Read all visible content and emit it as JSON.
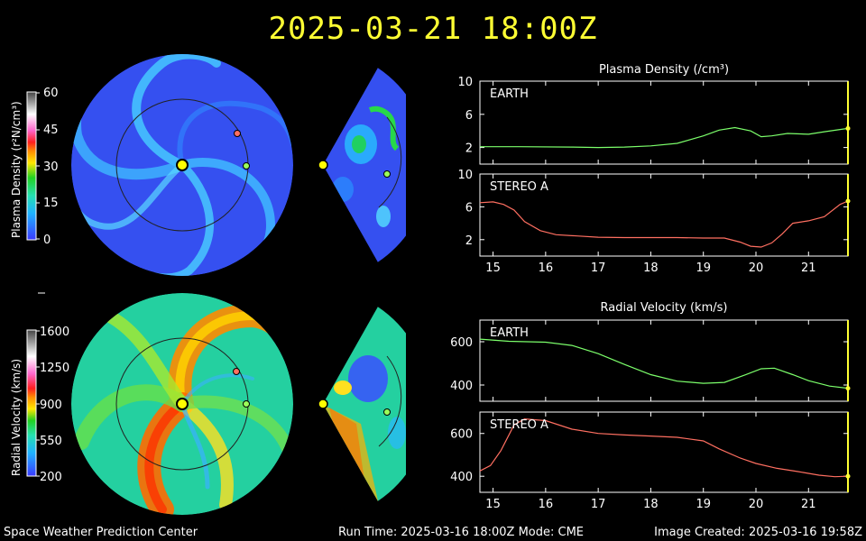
{
  "title": "2025-03-21 18:00Z",
  "footer": {
    "left": "Space Weather Prediction Center",
    "center": "Run Time: 2025-03-16 18:00Z  Mode: CME",
    "right": "Image Created: 2025-03-16 19:58Z"
  },
  "density_scale": {
    "label": "Plasma Density (r²N/cm³)",
    "ticks": [
      "60",
      "45",
      "30",
      "15",
      "0"
    ]
  },
  "velocity_scale": {
    "label": "Radial Velocity (km/s)",
    "ticks": [
      "1600",
      "1250",
      "900",
      "550",
      "200"
    ]
  },
  "density_panel": {
    "title": "Plasma Density (/cm³)"
  },
  "velocity_panel": {
    "title": "Radial Velocity (km/s)"
  },
  "chart_data": [
    {
      "type": "line",
      "title": "Plasma Density (/cm³)",
      "series": [
        {
          "name": "EARTH",
          "color": "#7cff6b",
          "x": [
            14.75,
            15.5,
            16.5,
            17.0,
            17.5,
            18.0,
            18.5,
            19.0,
            19.3,
            19.6,
            19.9,
            20.1,
            20.3,
            20.6,
            21.0,
            21.3,
            21.75
          ],
          "y": [
            2.1,
            2.1,
            2.05,
            2.0,
            2.05,
            2.2,
            2.5,
            3.4,
            4.1,
            4.4,
            4.0,
            3.3,
            3.4,
            3.7,
            3.6,
            3.9,
            4.3
          ]
        }
      ],
      "ylim": [
        0,
        10
      ],
      "yticks": [
        2,
        6,
        10
      ],
      "xlim": [
        14.75,
        21.75
      ],
      "xticks": [
        15,
        16,
        17,
        18,
        19,
        20,
        21
      ]
    },
    {
      "type": "line",
      "series": [
        {
          "name": "STEREO A",
          "color": "#ff6f61",
          "x": [
            14.75,
            15.0,
            15.2,
            15.4,
            15.6,
            15.9,
            16.2,
            16.6,
            17.0,
            17.5,
            18.0,
            18.5,
            19.0,
            19.4,
            19.7,
            19.9,
            20.1,
            20.3,
            20.5,
            20.7,
            21.0,
            21.3,
            21.6,
            21.75
          ],
          "y": [
            6.5,
            6.6,
            6.3,
            5.6,
            4.2,
            3.1,
            2.6,
            2.45,
            2.3,
            2.25,
            2.25,
            2.25,
            2.2,
            2.2,
            1.7,
            1.2,
            1.1,
            1.6,
            2.7,
            4.0,
            4.3,
            4.8,
            6.3,
            6.7
          ]
        }
      ],
      "ylim": [
        0,
        10
      ],
      "yticks": [
        2,
        6,
        10
      ],
      "xlim": [
        14.75,
        21.75
      ],
      "xticks": [
        15,
        16,
        17,
        18,
        19,
        20,
        21
      ]
    },
    {
      "type": "line",
      "title": "Radial Velocity (km/s)",
      "series": [
        {
          "name": "EARTH",
          "color": "#7cff6b",
          "x": [
            14.75,
            15.3,
            16.0,
            16.5,
            17.0,
            17.5,
            18.0,
            18.5,
            19.0,
            19.4,
            19.8,
            20.1,
            20.35,
            20.7,
            21.0,
            21.4,
            21.75
          ],
          "y": [
            612,
            602,
            598,
            583,
            545,
            495,
            448,
            418,
            408,
            412,
            447,
            475,
            478,
            448,
            420,
            395,
            385
          ]
        }
      ],
      "ylim": [
        325,
        700
      ],
      "yticks": [
        400,
        600
      ],
      "xlim": [
        14.75,
        21.75
      ],
      "xticks": [
        15,
        16,
        17,
        18,
        19,
        20,
        21
      ]
    },
    {
      "type": "line",
      "series": [
        {
          "name": "STEREO A",
          "color": "#ff6f61",
          "x": [
            14.75,
            14.95,
            15.15,
            15.4,
            15.6,
            16.0,
            16.5,
            17.0,
            17.5,
            18.0,
            18.5,
            19.0,
            19.3,
            19.7,
            20.0,
            20.4,
            20.8,
            21.2,
            21.5,
            21.75
          ],
          "y": [
            425,
            450,
            520,
            640,
            668,
            660,
            620,
            600,
            593,
            588,
            582,
            565,
            528,
            485,
            460,
            437,
            422,
            405,
            398,
            400
          ]
        }
      ],
      "ylim": [
        325,
        700
      ],
      "yticks": [
        400,
        600
      ],
      "xlim": [
        14.75,
        21.75
      ],
      "xticks": [
        15,
        16,
        17,
        18,
        19,
        20,
        21
      ]
    }
  ]
}
